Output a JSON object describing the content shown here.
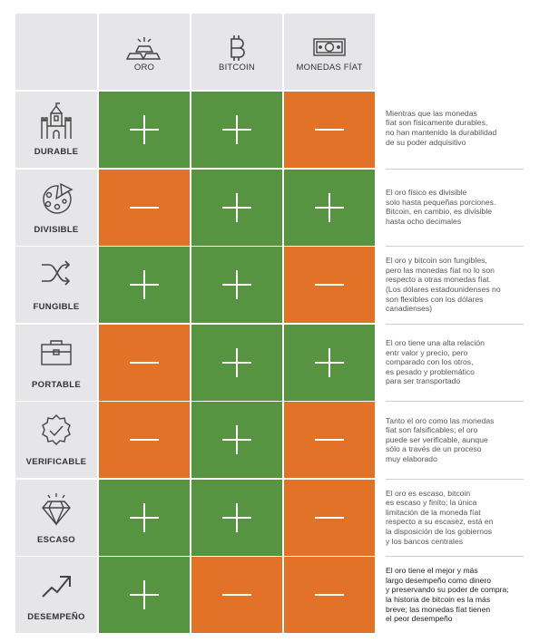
{
  "columns": [
    {
      "label": "ORO",
      "icon": "gold-bars-icon"
    },
    {
      "label": "BITCOIN",
      "icon": "bitcoin-icon"
    },
    {
      "label": "MONEDAS FÍAT",
      "icon": "banknote-icon"
    }
  ],
  "rows": [
    {
      "label": "DURABLE",
      "icon": "castle-icon",
      "cells": [
        "plus",
        "plus",
        "minus"
      ],
      "description": "Mientras que las monedas\nfíat son físicamente durables,\nno han mantenido la durabilidad\nde su poder adquisitivo"
    },
    {
      "label": "DIVISIBLE",
      "icon": "pizza-icon",
      "cells": [
        "minus",
        "plus",
        "plus"
      ],
      "description": "El oro físico es divisible\nsolo hasta pequeñas porciones.\nBitcoin, en cambio, es divisible\nhasta ocho decimales"
    },
    {
      "label": "FUNGIBLE",
      "icon": "shuffle-icon",
      "cells": [
        "plus",
        "plus",
        "minus"
      ],
      "description": "El oro y bitcoin son fungibles,\npero las monedas fíat no lo son\nrespecto a otras monedas fíat.\n(Los dólares estadounidenses no\nson flexibles con los dólares\ncanadienses)"
    },
    {
      "label": "PORTABLE",
      "icon": "briefcase-icon",
      "cells": [
        "minus",
        "plus",
        "plus"
      ],
      "description": "El oro tiene una alta relación\nentr valor y precio, pero\ncomparado con los otros,\nes pesado y problemático\npara ser transportado"
    },
    {
      "label": "VERIFICABLE",
      "icon": "verified-badge-icon",
      "cells": [
        "minus",
        "plus",
        "minus"
      ],
      "description": "Tanto el oro como las monedas\nfíat son falsificables; el oro\npuede ser verificable, aunque\nsólo a través de un proceso\nmuy elaborado"
    },
    {
      "label": "ESCASO",
      "icon": "diamond-icon",
      "cells": [
        "plus",
        "plus",
        "minus"
      ],
      "description": "El oro es escaso, bitcoin\nes escaso y finito; la única\nlimitación de la moneda fíat\nrespecto a su escasez, está en\nla disposición de los gobiernos\ny los bancos centrales"
    },
    {
      "label": "DESEMPEÑO",
      "icon": "trend-up-icon",
      "cells": [
        "plus",
        "minus",
        "minus"
      ],
      "description": "El oro tiene el mejor y más\nlargo desempeño como dinero\ny preservando su poder de compra;\nla historia de bitcoin es la más\nbreve; las monedas fíat tienen\nel peor desempeño"
    }
  ],
  "colors": {
    "plus": "#569441",
    "minus": "#e27228",
    "header": "#e6e6e8"
  }
}
